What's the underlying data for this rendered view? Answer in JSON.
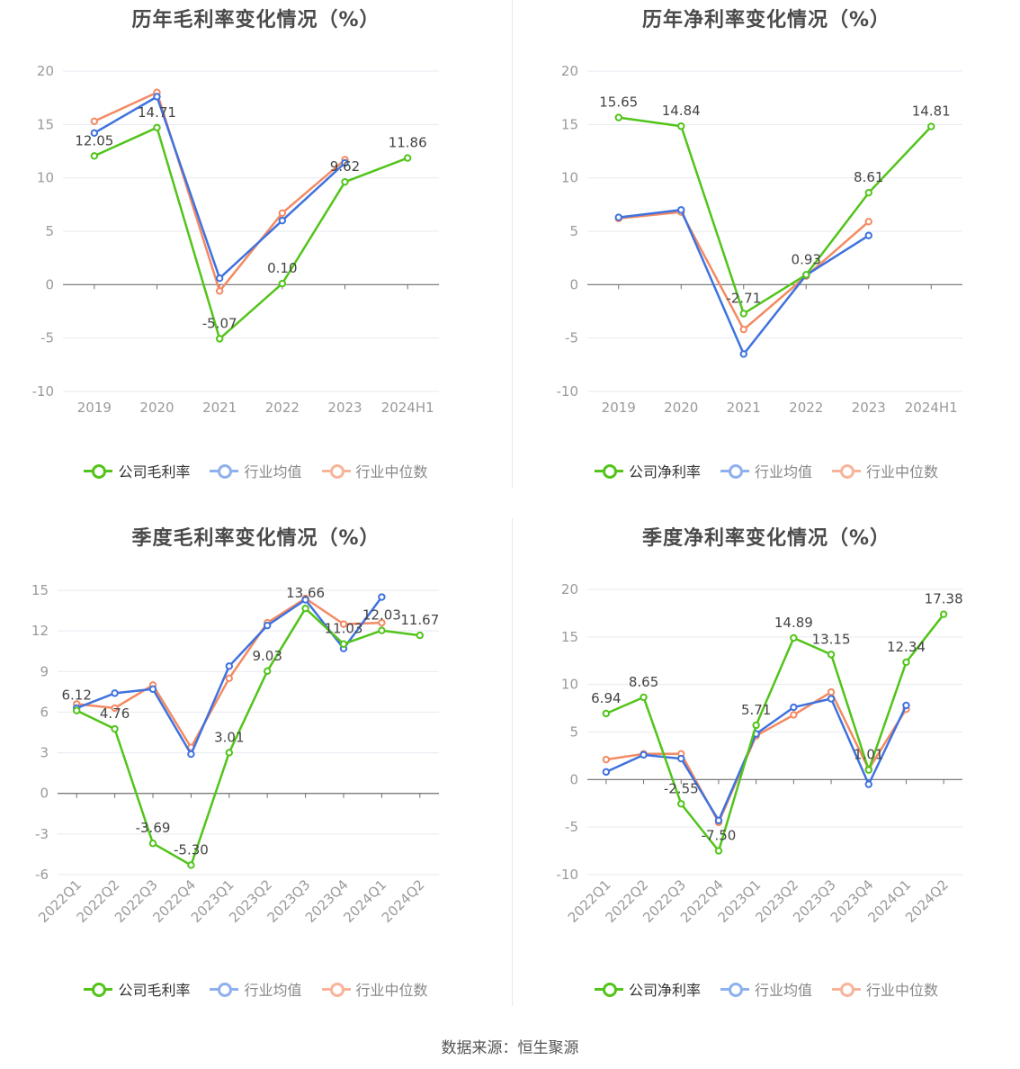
{
  "source_label": "数据来源：恒生聚源",
  "colors": {
    "company": "#52c41a",
    "avg": "#3f72de",
    "median": "#f38a63",
    "grid": "#e6e9f0",
    "axis": "#6e6e6e",
    "tick": "#9a9a9a"
  },
  "chart_data": [
    {
      "id": "annual-gross",
      "type": "line",
      "title": "历年毛利率变化情况（%）",
      "categories": [
        "2019",
        "2020",
        "2021",
        "2022",
        "2023",
        "2024H1"
      ],
      "ylim": [
        -10,
        20
      ],
      "yticks": [
        -10,
        -5,
        0,
        5,
        10,
        15,
        20
      ],
      "series": [
        {
          "name": "公司毛利率",
          "role": "company",
          "values": [
            12.05,
            14.71,
            -5.07,
            0.1,
            9.62,
            11.86
          ],
          "labels": [
            "12.05",
            "14.71",
            "-5.07",
            "0.10",
            "9.62",
            "11.86"
          ]
        },
        {
          "name": "行业均值",
          "role": "avg",
          "values": [
            14.2,
            17.6,
            0.6,
            6.0,
            11.4,
            null
          ]
        },
        {
          "name": "行业中位数",
          "role": "median",
          "values": [
            15.3,
            18.0,
            -0.6,
            6.7,
            11.7,
            null
          ]
        }
      ]
    },
    {
      "id": "annual-net",
      "type": "line",
      "title": "历年净利率变化情况（%）",
      "categories": [
        "2019",
        "2020",
        "2021",
        "2022",
        "2023",
        "2024H1"
      ],
      "ylim": [
        -10,
        20
      ],
      "yticks": [
        -10,
        -5,
        0,
        5,
        10,
        15,
        20
      ],
      "series": [
        {
          "name": "公司净利率",
          "role": "company",
          "values": [
            15.65,
            14.84,
            -2.71,
            0.93,
            8.61,
            14.81
          ],
          "labels": [
            "15.65",
            "14.84",
            "-2.71",
            "0.93",
            "8.61",
            "14.81"
          ]
        },
        {
          "name": "行业均值",
          "role": "avg",
          "values": [
            6.3,
            7.0,
            -6.5,
            0.9,
            4.6,
            null
          ]
        },
        {
          "name": "行业中位数",
          "role": "median",
          "values": [
            6.2,
            6.8,
            -4.2,
            0.8,
            5.9,
            null
          ]
        }
      ]
    },
    {
      "id": "quarterly-gross",
      "type": "line",
      "title": "季度毛利率变化情况（%）",
      "categories": [
        "2022Q1",
        "2022Q2",
        "2022Q3",
        "2022Q4",
        "2023Q1",
        "2023Q2",
        "2023Q3",
        "2023Q4",
        "2024Q1",
        "2024Q2"
      ],
      "ylim": [
        -6,
        15
      ],
      "yticks": [
        -6,
        -3,
        0,
        3,
        6,
        9,
        12,
        15
      ],
      "series": [
        {
          "name": "公司毛利率",
          "role": "company",
          "values": [
            6.12,
            4.76,
            -3.69,
            -5.3,
            3.01,
            9.03,
            13.66,
            11.03,
            12.03,
            11.67
          ],
          "labels": [
            "6.12",
            "4.76",
            "-3.69",
            "-5.30",
            "3.01",
            "9.03",
            "13.66",
            "11.03",
            "12.03",
            "11.67"
          ]
        },
        {
          "name": "行业均值",
          "role": "avg",
          "values": [
            6.3,
            7.4,
            7.7,
            2.9,
            9.4,
            12.4,
            14.3,
            10.7,
            14.5,
            null
          ]
        },
        {
          "name": "行业中位数",
          "role": "median",
          "values": [
            6.6,
            6.3,
            8.0,
            3.4,
            8.5,
            12.6,
            14.4,
            12.5,
            12.6,
            null
          ]
        }
      ]
    },
    {
      "id": "quarterly-net",
      "type": "line",
      "title": "季度净利率变化情况（%）",
      "categories": [
        "2022Q1",
        "2022Q2",
        "2022Q3",
        "2022Q4",
        "2023Q1",
        "2023Q2",
        "2023Q3",
        "2023Q4",
        "2024Q1",
        "2024Q2"
      ],
      "ylim": [
        -10,
        20
      ],
      "yticks": [
        -10,
        -5,
        0,
        5,
        10,
        15,
        20
      ],
      "series": [
        {
          "name": "公司净利率",
          "role": "company",
          "values": [
            6.94,
            8.65,
            -2.55,
            -7.5,
            5.71,
            14.89,
            13.15,
            1.01,
            12.34,
            17.38
          ],
          "labels": [
            "6.94",
            "8.65",
            "-2.55",
            "-7.50",
            "5.71",
            "14.89",
            "13.15",
            "1.01",
            "12.34",
            "17.38"
          ]
        },
        {
          "name": "行业均值",
          "role": "avg",
          "values": [
            0.8,
            2.6,
            2.2,
            -4.3,
            4.8,
            7.6,
            8.5,
            -0.5,
            7.8,
            null
          ]
        },
        {
          "name": "行业中位数",
          "role": "median",
          "values": [
            2.1,
            2.7,
            2.7,
            -4.5,
            4.6,
            6.8,
            9.2,
            1.1,
            7.4,
            null
          ]
        }
      ]
    }
  ]
}
